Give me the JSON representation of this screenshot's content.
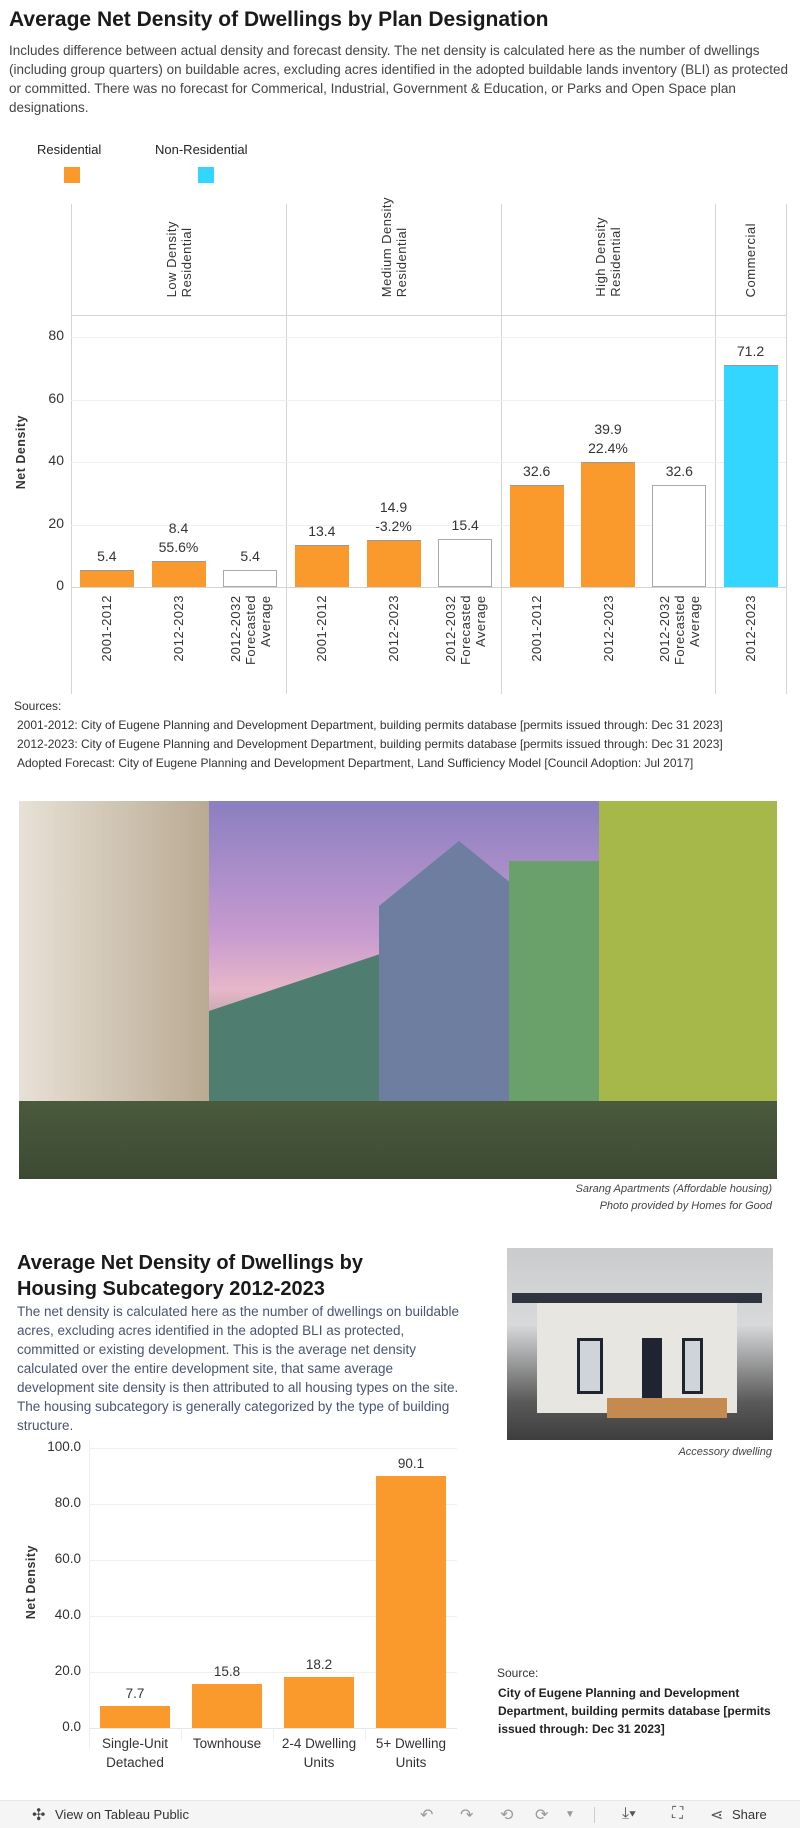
{
  "section1": {
    "title": "Average Net Density of Dwellings by Plan Designation",
    "description": "Includes difference between actual density and forecast density. The net density is calculated here as the number of dwellings (including group quarters) on buildable acres, excluding acres identified in the adopted buildable lands inventory (BLI) as protected or committed. There was no forecast for Commerical, Industrial, Government & Education, or Parks and Open Space plan designations.",
    "legend": [
      {
        "label": "Residential",
        "color": "#FA9A2D"
      },
      {
        "label": "Non-Residential",
        "color": "#33D6FF"
      }
    ],
    "sources": {
      "heading": "Sources:",
      "lines": [
        "2001-2012: City of Eugene Planning and Development Department, building permits database [permits issued through: Dec 31 2023]",
        "2012-2023: City of Eugene Planning and Development Department, building permits database [permits issued through: Dec 31 2023]",
        "Adopted Forecast: City of Eugene Planning and Development Department, Land Sufficiency Model [Council Adoption: Jul 2017]"
      ]
    }
  },
  "photo1": {
    "caption_line1": "Sarang Apartments (Affordable housing)",
    "caption_line2": "Photo provided by Homes for Good"
  },
  "section2": {
    "title": "Average Net Density of Dwellings by Housing Subcategory 2012-2023",
    "description": "The net density is calculated here as the number of dwellings on buildable acres, excluding acres identified in the adopted BLI as protected, committed or existing development. This is the average net density calculated over the entire development site, that same average development site density is then attributed to all housing types on the site. The housing subcategory is generally categorized by the type of building structure.",
    "source_heading": "Source:",
    "source_text": "City of Eugene Planning and Development Department, building permits database [permits issued through: Dec 31 2023]"
  },
  "photo2": {
    "caption": "Accessory dwelling"
  },
  "chart_data": [
    {
      "type": "bar",
      "ylabel": "Net Density",
      "ylim": [
        0,
        87
      ],
      "yticks": [
        "0",
        "20",
        "40",
        "60",
        "80"
      ],
      "grid": true,
      "legend": "top-left",
      "panes": [
        {
          "name": "Low Density Residential",
          "header": [
            "Low Density",
            "Residential"
          ],
          "bars": [
            {
              "label": [
                "2001-2012"
              ],
              "value": 5.4,
              "text": "5.4",
              "kind": "Residential"
            },
            {
              "label": [
                "2012-2023"
              ],
              "value": 8.4,
              "text": "8.4",
              "change": "55.6%",
              "kind": "Residential"
            },
            {
              "label": [
                "2012-2032",
                "Forecasted",
                "Average"
              ],
              "value": 5.4,
              "text": "5.4",
              "kind": "Forecast"
            }
          ]
        },
        {
          "name": "Medium Density Residential",
          "header": [
            "Medium Density",
            "Residential"
          ],
          "bars": [
            {
              "label": [
                "2001-2012"
              ],
              "value": 13.4,
              "text": "13.4",
              "kind": "Residential"
            },
            {
              "label": [
                "2012-2023"
              ],
              "value": 14.9,
              "text": "14.9",
              "change": "-3.2%",
              "kind": "Residential"
            },
            {
              "label": [
                "2012-2032",
                "Forecasted",
                "Average"
              ],
              "value": 15.4,
              "text": "15.4",
              "kind": "Forecast"
            }
          ]
        },
        {
          "name": "High Density Residential",
          "header": [
            "High Density",
            "Residential"
          ],
          "bars": [
            {
              "label": [
                "2001-2012"
              ],
              "value": 32.6,
              "text": "32.6",
              "kind": "Residential"
            },
            {
              "label": [
                "2012-2023"
              ],
              "value": 39.9,
              "text": "39.9",
              "change": "22.4%",
              "kind": "Residential"
            },
            {
              "label": [
                "2012-2032",
                "Forecasted",
                "Average"
              ],
              "value": 32.6,
              "text": "32.6",
              "kind": "Forecast"
            }
          ]
        },
        {
          "name": "Commercial",
          "header": [
            "Commercial"
          ],
          "bars": [
            {
              "label": [
                "2012-2023"
              ],
              "value": 71.2,
              "text": "71.2",
              "kind": "Non-Residential"
            }
          ]
        }
      ]
    },
    {
      "type": "bar",
      "ylabel": "Net Density",
      "ylim": [
        0,
        100
      ],
      "yticks": [
        "0.0",
        "20.0",
        "40.0",
        "60.0",
        "80.0",
        "100.0"
      ],
      "grid": true,
      "categories": [
        [
          "Single-Unit",
          "Detached"
        ],
        [
          "Townhouse"
        ],
        [
          "2-4 Dwelling",
          "Units"
        ],
        [
          "5+ Dwelling",
          "Units"
        ]
      ],
      "values": [
        7.7,
        15.8,
        18.2,
        90.1
      ],
      "labels": [
        "7.7",
        "15.8",
        "18.2",
        "90.1"
      ],
      "color": "#FA9A2D"
    }
  ],
  "footer": {
    "tableau_link": "View on Tableau Public",
    "share": "Share"
  }
}
